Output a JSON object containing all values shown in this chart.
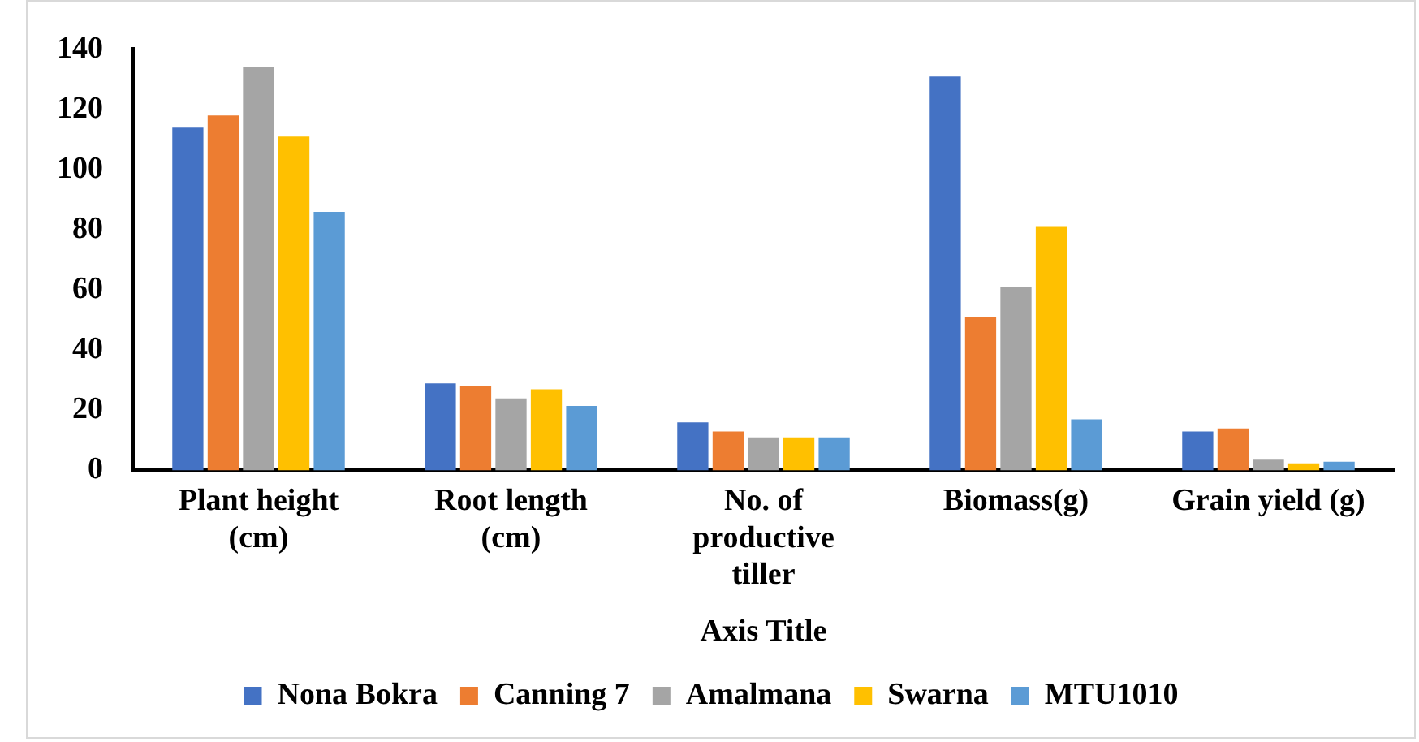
{
  "chart_data": {
    "type": "bar",
    "xlabel": "Axis Title",
    "categories": [
      "Plant height (cm)",
      "Root length (cm)",
      "No. of productive tiller",
      "Biomass(g)",
      "Grain yield (g)"
    ],
    "series": [
      {
        "name": "Nona Bokra",
        "color": "#4472c4",
        "values": [
          114,
          29,
          16,
          131,
          13
        ]
      },
      {
        "name": "Canning 7",
        "color": "#ed7d31",
        "values": [
          118,
          28,
          13,
          51,
          14
        ]
      },
      {
        "name": "Amalmana",
        "color": "#a5a5a5",
        "values": [
          134,
          24,
          11,
          61,
          3.6
        ]
      },
      {
        "name": "Swarna",
        "color": "#ffc000",
        "values": [
          111,
          27,
          11,
          81,
          2.4
        ]
      },
      {
        "name": "MTU1010",
        "color": "#5b9bd5",
        "values": [
          86,
          21.5,
          11,
          17,
          2.9
        ]
      }
    ],
    "ylim": [
      0,
      140
    ],
    "yticks": [
      0,
      20,
      40,
      60,
      80,
      100,
      120,
      140
    ],
    "grid": false,
    "legend": "bottom"
  }
}
